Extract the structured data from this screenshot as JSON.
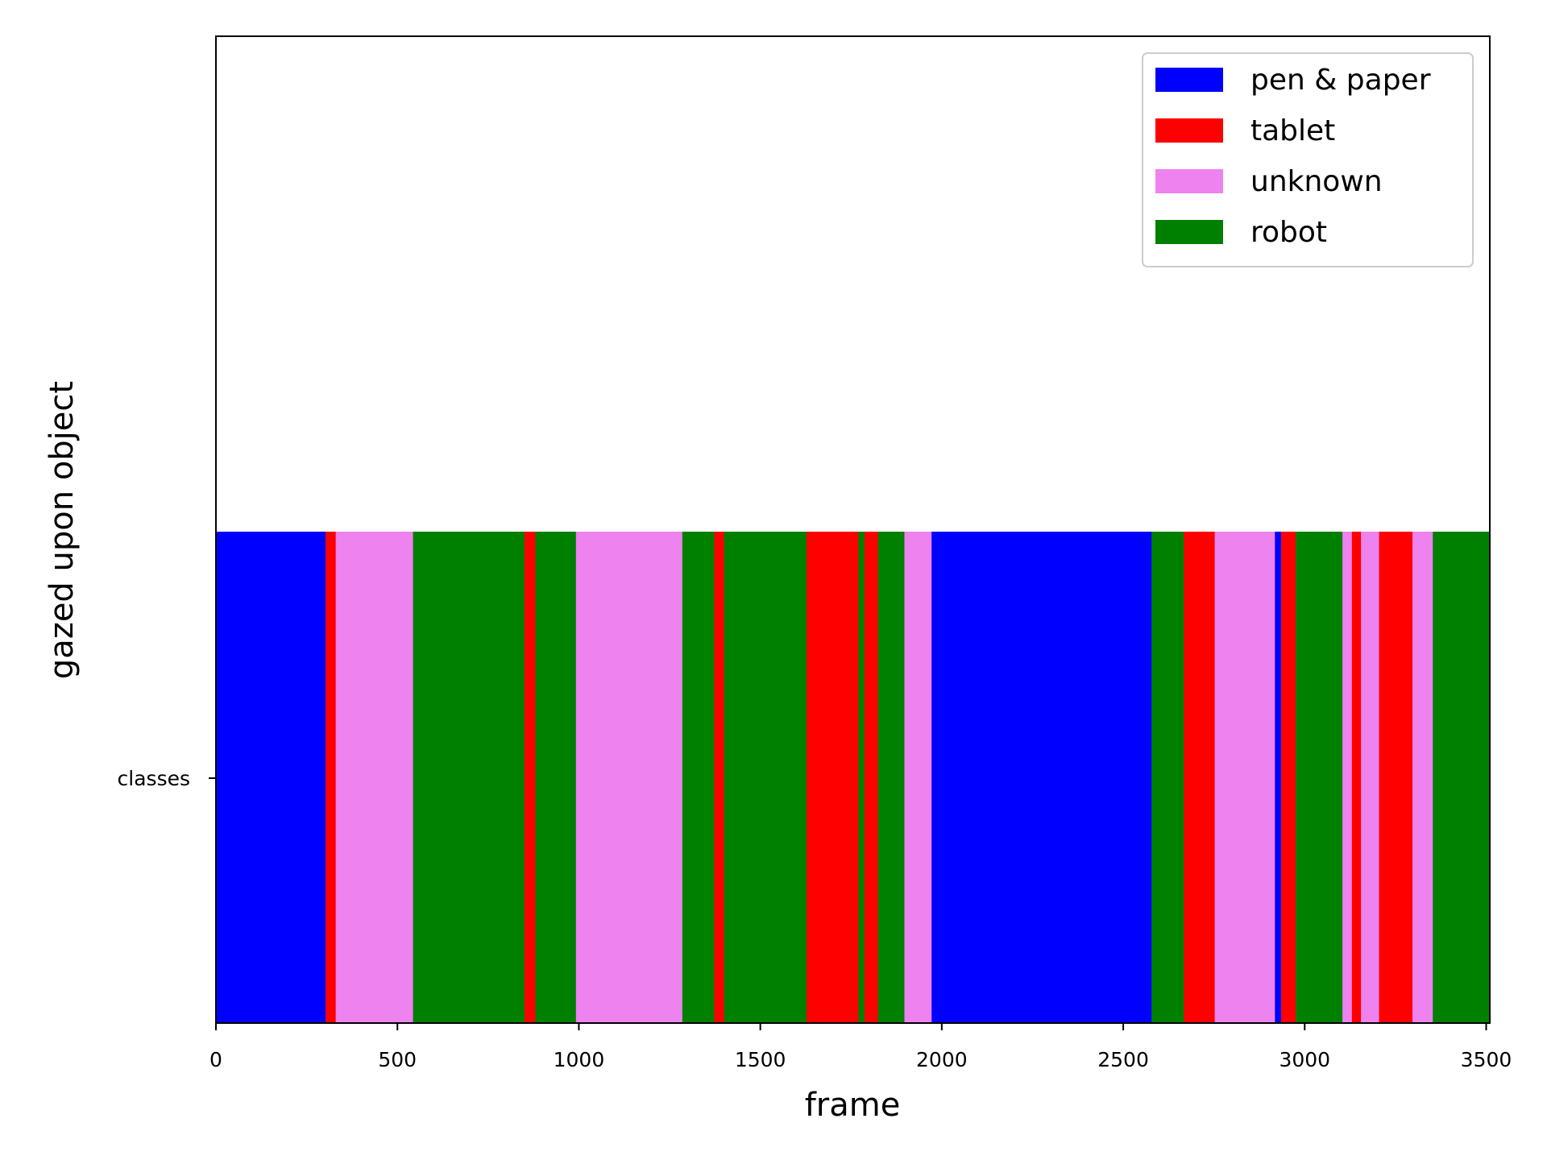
{
  "chart_data": {
    "type": "bar",
    "orientation": "horizontal-broken-bar",
    "xlabel": "frame",
    "ylabel": "gazed upon object",
    "ytick_labels": [
      "classes"
    ],
    "xlim": [
      0,
      3510
    ],
    "xticks": [
      0,
      500,
      1000,
      1500,
      2000,
      2500,
      3000,
      3500
    ],
    "grid": false,
    "legend_position": "upper-right",
    "colors": {
      "pen & paper": "#0000ff",
      "tablet": "#ff0000",
      "unknown": "#ee82ee",
      "robot": "#008000"
    },
    "legend": [
      "pen & paper",
      "tablet",
      "unknown",
      "robot"
    ],
    "segments": [
      {
        "class": "pen & paper",
        "start": 0,
        "end": 302
      },
      {
        "class": "tablet",
        "start": 302,
        "end": 330
      },
      {
        "class": "unknown",
        "start": 330,
        "end": 543
      },
      {
        "class": "robot",
        "start": 543,
        "end": 850
      },
      {
        "class": "tablet",
        "start": 850,
        "end": 880
      },
      {
        "class": "robot",
        "start": 880,
        "end": 992
      },
      {
        "class": "unknown",
        "start": 992,
        "end": 1285
      },
      {
        "class": "robot",
        "start": 1285,
        "end": 1373
      },
      {
        "class": "tablet",
        "start": 1373,
        "end": 1400
      },
      {
        "class": "robot",
        "start": 1400,
        "end": 1627
      },
      {
        "class": "tablet",
        "start": 1627,
        "end": 1770
      },
      {
        "class": "robot",
        "start": 1770,
        "end": 1787
      },
      {
        "class": "tablet",
        "start": 1787,
        "end": 1824
      },
      {
        "class": "robot",
        "start": 1824,
        "end": 1897
      },
      {
        "class": "unknown",
        "start": 1897,
        "end": 1972
      },
      {
        "class": "pen & paper",
        "start": 1972,
        "end": 2578
      },
      {
        "class": "robot",
        "start": 2578,
        "end": 2667
      },
      {
        "class": "tablet",
        "start": 2667,
        "end": 2752
      },
      {
        "class": "unknown",
        "start": 2752,
        "end": 2918
      },
      {
        "class": "pen & paper",
        "start": 2918,
        "end": 2935
      },
      {
        "class": "tablet",
        "start": 2935,
        "end": 2975
      },
      {
        "class": "robot",
        "start": 2975,
        "end": 3104
      },
      {
        "class": "unknown",
        "start": 3104,
        "end": 3130
      },
      {
        "class": "tablet",
        "start": 3130,
        "end": 3155
      },
      {
        "class": "unknown",
        "start": 3155,
        "end": 3205
      },
      {
        "class": "tablet",
        "start": 3205,
        "end": 3297
      },
      {
        "class": "unknown",
        "start": 3297,
        "end": 3353
      },
      {
        "class": "robot",
        "start": 3353,
        "end": 3510
      }
    ]
  }
}
